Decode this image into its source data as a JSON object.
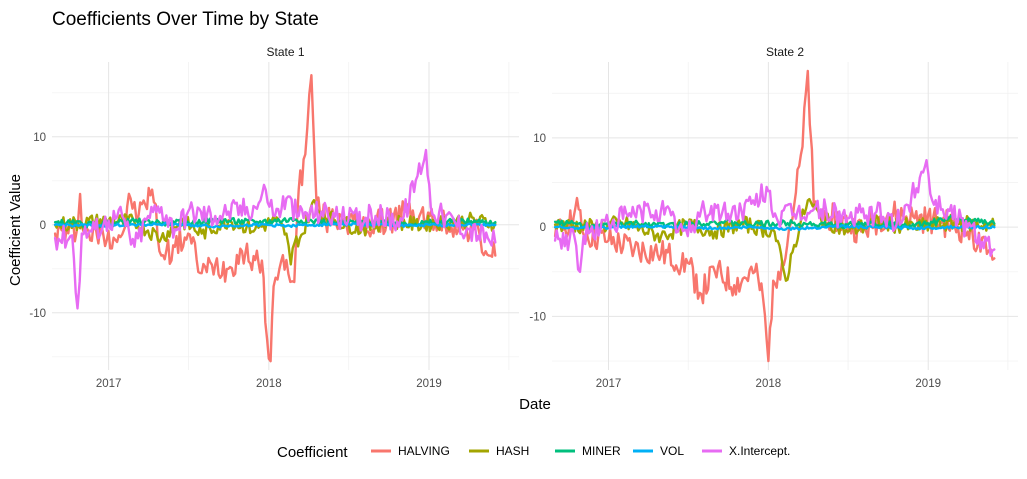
{
  "chart_data": {
    "type": "line",
    "title": "Coefficients Over Time by State",
    "xlabel": "Date",
    "ylabel": "Coefficient Value",
    "x_ticks": [
      "2017",
      "2018",
      "2019"
    ],
    "x_tick_dates": [
      "2017-01-01",
      "2018-01-01",
      "2019-01-01"
    ],
    "xlim": [
      "2016-08-25",
      "2019-07-25"
    ],
    "data_x_range": [
      "2016-09-01",
      "2019-06-01"
    ],
    "legend": {
      "title": "Coefficient",
      "position": "bottom"
    },
    "grid": true,
    "colors": {
      "HALVING": "#F8766D",
      "HASH": "#A3A500",
      "MINER": "#00BF7D",
      "VOL": "#00B0F6",
      "X.Intercept.": "#E76BF3"
    },
    "series_names": [
      "HALVING",
      "HASH",
      "MINER",
      "VOL",
      "X.Intercept."
    ],
    "facets": [
      {
        "label": "State 1",
        "y_ticks": [
          -10,
          0,
          10
        ],
        "ylim": [
          -16.5,
          18.5
        ],
        "series": [
          {
            "name": "HALVING",
            "points": [
              [
                "2016-09-01",
                -1.0
              ],
              [
                "2016-10-20",
                -0.8
              ],
              [
                "2016-10-28",
                3.5
              ],
              [
                "2016-11-05",
                -0.8
              ],
              [
                "2016-12-20",
                -1.2
              ],
              [
                "2017-02-01",
                -1.1
              ],
              [
                "2017-02-20",
                3.0
              ],
              [
                "2017-03-10",
                1.0
              ],
              [
                "2017-04-10",
                4.0
              ],
              [
                "2017-05-01",
                -3.5
              ],
              [
                "2017-06-01",
                -2.5
              ],
              [
                "2017-07-01",
                -1.0
              ],
              [
                "2017-08-01",
                -5.5
              ],
              [
                "2017-09-01",
                -4.5
              ],
              [
                "2017-10-01",
                -5.0
              ],
              [
                "2017-11-01",
                -3.0
              ],
              [
                "2017-12-01",
                -4.0
              ],
              [
                "2017-12-20",
                -6.0
              ],
              [
                "2017-12-28",
                -13.0
              ],
              [
                "2018-01-05",
                -15.5
              ],
              [
                "2018-01-12",
                -7.0
              ],
              [
                "2018-01-25",
                -5.0
              ],
              [
                "2018-02-10",
                -4.0
              ],
              [
                "2018-02-28",
                -6.5
              ],
              [
                "2018-03-10",
                4.0
              ],
              [
                "2018-03-25",
                8.0
              ],
              [
                "2018-04-08",
                17.0
              ],
              [
                "2018-04-20",
                2.0
              ],
              [
                "2018-05-10",
                0.5
              ],
              [
                "2018-06-15",
                1.0
              ],
              [
                "2018-08-01",
                -0.5
              ],
              [
                "2018-10-01",
                0.5
              ],
              [
                "2018-11-10",
                1.5
              ],
              [
                "2018-12-10",
                1.0
              ],
              [
                "2019-01-15",
                0.3
              ],
              [
                "2019-03-01",
                0.0
              ],
              [
                "2019-04-15",
                -0.5
              ],
              [
                "2019-05-10",
                -3.0
              ],
              [
                "2019-06-01",
                -3.5
              ]
            ]
          },
          {
            "name": "HASH",
            "points": [
              [
                "2016-09-01",
                0.0
              ],
              [
                "2016-11-01",
                0.2
              ],
              [
                "2017-01-01",
                0.5
              ],
              [
                "2017-03-01",
                0.3
              ],
              [
                "2017-05-01",
                -1.5
              ],
              [
                "2017-06-15",
                0.5
              ],
              [
                "2017-08-01",
                -1.0
              ],
              [
                "2017-10-01",
                0.5
              ],
              [
                "2017-12-01",
                -0.5
              ],
              [
                "2018-01-15",
                0.5
              ],
              [
                "2018-02-10",
                -1.0
              ],
              [
                "2018-02-20",
                -4.5
              ],
              [
                "2018-03-01",
                -2.0
              ],
              [
                "2018-03-20",
                -1.0
              ],
              [
                "2018-04-10",
                2.5
              ],
              [
                "2018-04-25",
                1.5
              ],
              [
                "2018-06-01",
                0.5
              ],
              [
                "2018-08-01",
                -0.5
              ],
              [
                "2018-10-01",
                0.5
              ],
              [
                "2018-12-01",
                0.0
              ],
              [
                "2019-02-01",
                0.3
              ],
              [
                "2019-04-01",
                0.5
              ],
              [
                "2019-06-01",
                0.2
              ]
            ]
          },
          {
            "name": "MINER",
            "points": [
              [
                "2016-09-01",
                0.3
              ],
              [
                "2016-12-01",
                0.0
              ],
              [
                "2017-03-01",
                0.4
              ],
              [
                "2017-06-01",
                0.2
              ],
              [
                "2017-09-01",
                0.5
              ],
              [
                "2017-12-01",
                0.3
              ],
              [
                "2018-03-01",
                0.6
              ],
              [
                "2018-06-01",
                0.2
              ],
              [
                "2018-09-01",
                0.4
              ],
              [
                "2018-12-01",
                0.1
              ],
              [
                "2019-03-01",
                0.4
              ],
              [
                "2019-06-01",
                0.3
              ]
            ]
          },
          {
            "name": "VOL",
            "points": [
              [
                "2016-09-01",
                0.0
              ],
              [
                "2016-12-01",
                -0.1
              ],
              [
                "2017-03-01",
                0.0
              ],
              [
                "2017-06-01",
                0.1
              ],
              [
                "2017-09-01",
                -0.2
              ],
              [
                "2017-12-01",
                0.0
              ],
              [
                "2018-03-01",
                -0.1
              ],
              [
                "2018-06-01",
                0.1
              ],
              [
                "2018-09-01",
                0.0
              ],
              [
                "2018-12-01",
                -0.1
              ],
              [
                "2019-03-01",
                0.0
              ],
              [
                "2019-06-01",
                0.0
              ]
            ]
          },
          {
            "name": "X.Intercept.",
            "points": [
              [
                "2016-09-01",
                -1.5
              ],
              [
                "2016-10-10",
                -1.2
              ],
              [
                "2016-10-22",
                -9.5
              ],
              [
                "2016-11-01",
                -1.0
              ],
              [
                "2016-12-01",
                -0.5
              ],
              [
                "2017-01-01",
                0.5
              ],
              [
                "2017-02-01",
                1.0
              ],
              [
                "2017-03-01",
                -2.5
              ],
              [
                "2017-04-01",
                1.0
              ],
              [
                "2017-05-01",
                2.0
              ],
              [
                "2017-06-01",
                -0.5
              ],
              [
                "2017-07-01",
                1.5
              ],
              [
                "2017-09-01",
                1.0
              ],
              [
                "2017-10-01",
                1.5
              ],
              [
                "2017-12-01",
                2.0
              ],
              [
                "2017-12-25",
                4.0
              ],
              [
                "2018-01-15",
                1.0
              ],
              [
                "2018-02-10",
                3.0
              ],
              [
                "2018-03-10",
                1.0
              ],
              [
                "2018-05-01",
                1.5
              ],
              [
                "2018-07-01",
                0.5
              ],
              [
                "2018-09-01",
                1.0
              ],
              [
                "2018-11-01",
                0.5
              ],
              [
                "2018-12-25",
                8.5
              ],
              [
                "2019-01-05",
                2.0
              ],
              [
                "2019-02-01",
                1.0
              ],
              [
                "2019-04-01",
                -0.5
              ],
              [
                "2019-05-15",
                -1.5
              ],
              [
                "2019-06-01",
                -2.0
              ]
            ]
          }
        ]
      },
      {
        "label": "State 2",
        "y_ticks": [
          -10,
          0,
          10
        ],
        "ylim": [
          -16.0,
          18.5
        ],
        "series": [
          {
            "name": "HALVING",
            "points": [
              [
                "2016-09-01",
                -1.0
              ],
              [
                "2016-10-25",
                2.0
              ],
              [
                "2016-11-05",
                -0.8
              ],
              [
                "2017-01-01",
                -1.5
              ],
              [
                "2017-03-01",
                -2.5
              ],
              [
                "2017-05-01",
                -3.0
              ],
              [
                "2017-07-01",
                -4.0
              ],
              [
                "2017-08-01",
                -7.5
              ],
              [
                "2017-09-01",
                -5.0
              ],
              [
                "2017-10-15",
                -6.5
              ],
              [
                "2017-12-01",
                -5.0
              ],
              [
                "2017-12-20",
                -8.0
              ],
              [
                "2018-01-01",
                -15.0
              ],
              [
                "2018-01-12",
                -6.0
              ],
              [
                "2018-02-01",
                -4.0
              ],
              [
                "2018-03-01",
                2.5
              ],
              [
                "2018-03-20",
                9.0
              ],
              [
                "2018-04-01",
                17.5
              ],
              [
                "2018-04-15",
                2.0
              ],
              [
                "2018-06-01",
                1.0
              ],
              [
                "2018-08-01",
                -0.5
              ],
              [
                "2018-10-01",
                1.5
              ],
              [
                "2018-12-01",
                1.0
              ],
              [
                "2019-02-01",
                0.5
              ],
              [
                "2019-04-01",
                -0.5
              ],
              [
                "2019-05-15",
                -3.0
              ],
              [
                "2019-06-01",
                -3.5
              ]
            ]
          },
          {
            "name": "HASH",
            "points": [
              [
                "2016-09-01",
                0.3
              ],
              [
                "2016-12-01",
                0.0
              ],
              [
                "2017-02-01",
                0.5
              ],
              [
                "2017-05-01",
                -1.0
              ],
              [
                "2017-07-01",
                0.3
              ],
              [
                "2017-09-01",
                -0.5
              ],
              [
                "2017-11-01",
                0.4
              ],
              [
                "2018-01-15",
                -0.5
              ],
              [
                "2018-02-10",
                -6.0
              ],
              [
                "2018-03-01",
                -2.0
              ],
              [
                "2018-04-01",
                3.0
              ],
              [
                "2018-05-01",
                1.0
              ],
              [
                "2018-07-01",
                -0.5
              ],
              [
                "2018-09-01",
                0.5
              ],
              [
                "2018-12-01",
                0.0
              ],
              [
                "2019-03-01",
                0.5
              ],
              [
                "2019-06-01",
                0.2
              ]
            ]
          },
          {
            "name": "MINER",
            "points": [
              [
                "2016-09-01",
                0.6
              ],
              [
                "2016-12-01",
                0.1
              ],
              [
                "2017-03-01",
                0.4
              ],
              [
                "2017-06-01",
                0.2
              ],
              [
                "2017-09-01",
                0.6
              ],
              [
                "2017-12-01",
                0.3
              ],
              [
                "2018-03-01",
                0.5
              ],
              [
                "2018-06-01",
                0.2
              ],
              [
                "2018-09-01",
                0.4
              ],
              [
                "2018-12-01",
                0.1
              ],
              [
                "2019-03-01",
                1.0
              ],
              [
                "2019-06-01",
                0.4
              ]
            ]
          },
          {
            "name": "VOL",
            "points": [
              [
                "2016-09-01",
                0.0
              ],
              [
                "2016-12-01",
                -0.1
              ],
              [
                "2017-03-01",
                0.1
              ],
              [
                "2017-06-01",
                0.0
              ],
              [
                "2017-09-01",
                -0.1
              ],
              [
                "2017-12-01",
                0.0
              ],
              [
                "2018-03-01",
                -0.2
              ],
              [
                "2018-06-01",
                0.1
              ],
              [
                "2018-09-01",
                0.0
              ],
              [
                "2018-12-01",
                -0.1
              ],
              [
                "2019-03-01",
                0.0
              ],
              [
                "2019-06-01",
                0.0
              ]
            ]
          },
          {
            "name": "X.Intercept.",
            "points": [
              [
                "2016-09-01",
                -1.5
              ],
              [
                "2016-10-15",
                -1.0
              ],
              [
                "2016-10-28",
                -5.0
              ],
              [
                "2016-11-05",
                -1.0
              ],
              [
                "2017-01-01",
                0.5
              ],
              [
                "2017-03-01",
                1.5
              ],
              [
                "2017-05-01",
                2.0
              ],
              [
                "2017-07-01",
                -1.0
              ],
              [
                "2017-08-01",
                2.0
              ],
              [
                "2017-10-01",
                1.5
              ],
              [
                "2017-12-01",
                2.5
              ],
              [
                "2017-12-28",
                4.5
              ],
              [
                "2018-01-20",
                1.0
              ],
              [
                "2018-03-01",
                1.5
              ],
              [
                "2018-05-01",
                2.0
              ],
              [
                "2018-07-01",
                1.0
              ],
              [
                "2018-09-01",
                1.5
              ],
              [
                "2018-11-01",
                0.5
              ],
              [
                "2018-12-28",
                7.5
              ],
              [
                "2019-01-10",
                3.0
              ],
              [
                "2019-02-15",
                2.0
              ],
              [
                "2019-04-01",
                0.0
              ],
              [
                "2019-05-15",
                -1.5
              ],
              [
                "2019-06-01",
                -2.5
              ]
            ]
          }
        ]
      }
    ]
  }
}
